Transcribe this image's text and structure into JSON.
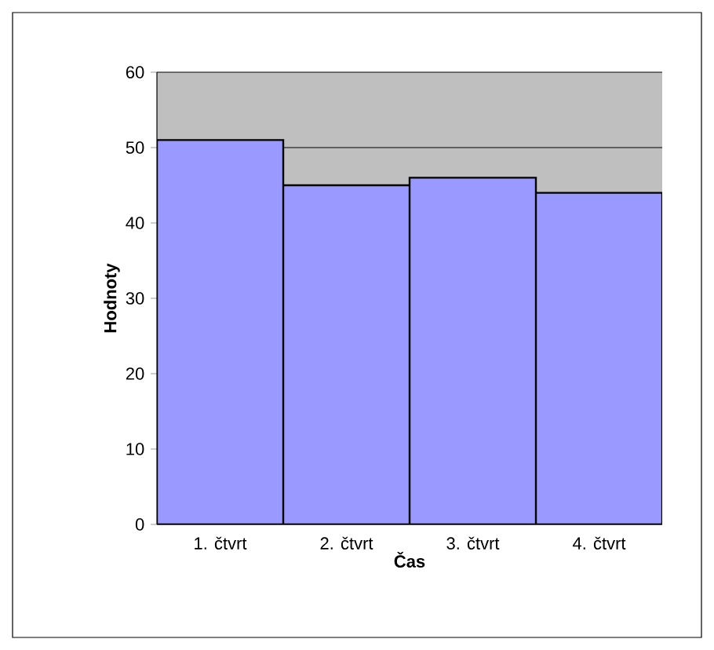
{
  "chart_data": {
    "type": "bar",
    "xlabel": "Čas",
    "ylabel": "Hodnoty",
    "categories": [
      "1. čtvrt",
      "2. čtvrt",
      "3. čtvrt",
      "4. čtvrt"
    ],
    "values": [
      51,
      45,
      46,
      44
    ],
    "color": "#9999ff",
    "ylim": [
      0,
      60
    ],
    "yticks": [
      0,
      10,
      20,
      30,
      40,
      50,
      60
    ],
    "grid": "y"
  }
}
